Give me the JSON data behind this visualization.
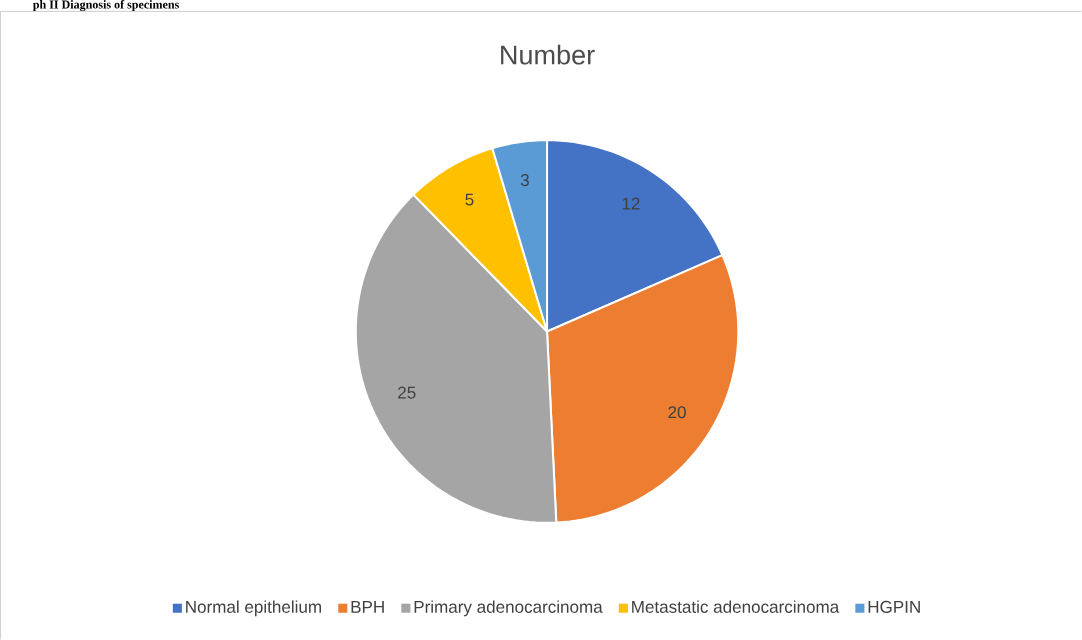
{
  "chart_data": {
    "type": "pie",
    "title": "Number",
    "categories": [
      "Normal epithelium",
      "BPH",
      "Primary adenocarcinoma",
      "Metastatic adenocarcinoma",
      "HGPIN"
    ],
    "values": [
      12,
      20,
      25,
      5,
      3
    ],
    "colors": [
      "#4472c4",
      "#ed7d31",
      "#a5a5a5",
      "#ffc000",
      "#5b9bd5"
    ],
    "data_labels": true,
    "legend": "bottom",
    "annotations": [
      "ph II Diagnosis of specimens"
    ]
  }
}
